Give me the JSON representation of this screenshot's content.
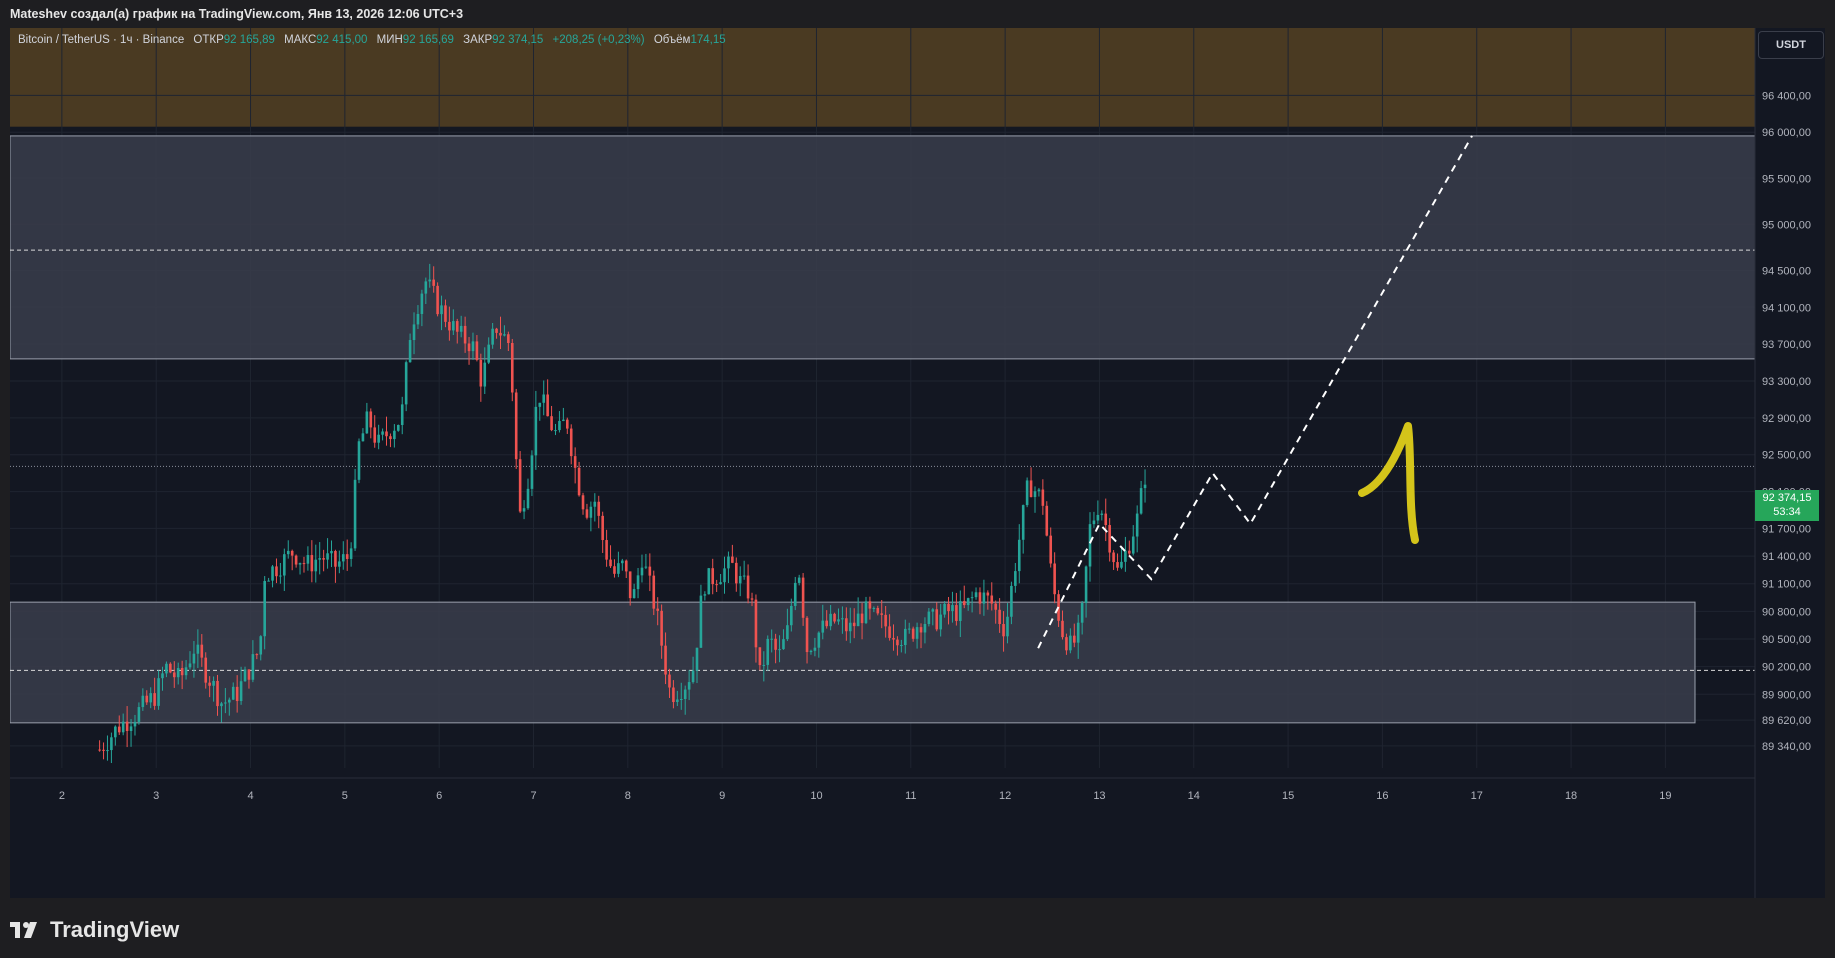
{
  "header": {
    "title": "Mateshev создал(а) график на TradingView.com, Янв 13, 2026 12:06 UTC+3"
  },
  "legend": {
    "symbol": "Bitcoin / TetherUS · 1ч · Binance",
    "open_label": "ОТКР",
    "open": "92 165,89",
    "high_label": "МАКС",
    "high": "92 415,00",
    "low_label": "МИН",
    "low": "92 165,69",
    "close_label": "ЗАКР",
    "close": "92 374,15",
    "change": "+208,25 (+0,23%)",
    "volume_label": "Объём",
    "volume": "174,15"
  },
  "currency_button": "USDT",
  "last_price": {
    "value": "92 374,15",
    "countdown": "53:34"
  },
  "footer": {
    "brand": "TradingView"
  },
  "colors": {
    "up": "#26a69a",
    "down": "#ef5350",
    "background": "#131722",
    "zone": "#3a3d4b",
    "top_band": "#4a3a22",
    "annotation": "#d4c41a"
  },
  "chart_data": {
    "type": "candlestick",
    "y_ticks": [
      "96 400,00",
      "96 000,00",
      "95 500,00",
      "95 000,00",
      "94 500,00",
      "94 100,00",
      "93 700,00",
      "93 300,00",
      "92 900,00",
      "92 500,00",
      "92 100,00",
      "91 700,00",
      "91 400,00",
      "91 100,00",
      "90 800,00",
      "90 500,00",
      "90 200,00",
      "89 900,00",
      "89 620,00",
      "89 340,00"
    ],
    "x_ticks": [
      "2",
      "3",
      "4",
      "5",
      "6",
      "7",
      "8",
      "9",
      "10",
      "11",
      "12",
      "13",
      "14",
      "15",
      "16",
      "17",
      "18",
      "19"
    ],
    "ylim": [
      89100,
      96480
    ],
    "x_range_days": [
      1.45,
      19.95
    ],
    "zones": [
      {
        "from": 93540,
        "to": 95960
      },
      {
        "from": 89590,
        "to": 90900
      }
    ],
    "dashed_levels": [
      94720,
      90160
    ],
    "last_price": 92374.15,
    "projection_path": [
      [
        12.35,
        90400
      ],
      [
        13.0,
        91750
      ],
      [
        13.55,
        91150
      ],
      [
        14.2,
        92300
      ],
      [
        14.6,
        91750
      ],
      [
        16.95,
        95960
      ]
    ],
    "price_path": [
      [
        2.4,
        89300
      ],
      [
        2.6,
        89550
      ],
      [
        2.8,
        89700
      ],
      [
        3.0,
        89900
      ],
      [
        3.1,
        90200
      ],
      [
        3.25,
        90050
      ],
      [
        3.4,
        90400
      ],
      [
        3.55,
        90100
      ],
      [
        3.7,
        89800
      ],
      [
        3.85,
        89900
      ],
      [
        4.0,
        90200
      ],
      [
        4.1,
        90400
      ],
      [
        4.15,
        91200
      ],
      [
        4.3,
        91300
      ],
      [
        4.45,
        91450
      ],
      [
        4.6,
        91300
      ],
      [
        4.75,
        91400
      ],
      [
        4.9,
        91300
      ],
      [
        5.05,
        91400
      ],
      [
        5.15,
        92600
      ],
      [
        5.25,
        92900
      ],
      [
        5.35,
        92600
      ],
      [
        5.5,
        92800
      ],
      [
        5.6,
        92900
      ],
      [
        5.7,
        93900
      ],
      [
        5.85,
        94400
      ],
      [
        6.0,
        94100
      ],
      [
        6.2,
        93800
      ],
      [
        6.35,
        93700
      ],
      [
        6.45,
        93300
      ],
      [
        6.6,
        93900
      ],
      [
        6.75,
        93700
      ],
      [
        6.85,
        91800
      ],
      [
        6.95,
        92300
      ],
      [
        7.05,
        93200
      ],
      [
        7.15,
        92900
      ],
      [
        7.25,
        92700
      ],
      [
        7.35,
        92900
      ],
      [
        7.45,
        92300
      ],
      [
        7.55,
        91900
      ],
      [
        7.65,
        92000
      ],
      [
        7.75,
        91500
      ],
      [
        7.85,
        91200
      ],
      [
        7.95,
        91300
      ],
      [
        8.05,
        90900
      ],
      [
        8.15,
        91400
      ],
      [
        8.3,
        90800
      ],
      [
        8.45,
        89900
      ],
      [
        8.6,
        90000
      ],
      [
        8.7,
        90200
      ],
      [
        8.8,
        91100
      ],
      [
        8.95,
        91200
      ],
      [
        9.1,
        91300
      ],
      [
        9.2,
        91100
      ],
      [
        9.3,
        91000
      ],
      [
        9.4,
        90100
      ],
      [
        9.5,
        90500
      ],
      [
        9.6,
        90300
      ],
      [
        9.7,
        90600
      ],
      [
        9.8,
        91400
      ],
      [
        9.9,
        90400
      ],
      [
        10.05,
        90600
      ],
      [
        10.2,
        90700
      ],
      [
        10.35,
        90600
      ],
      [
        10.5,
        90800
      ],
      [
        10.65,
        90700
      ],
      [
        10.8,
        90600
      ],
      [
        10.95,
        90500
      ],
      [
        11.1,
        90700
      ],
      [
        11.25,
        90700
      ],
      [
        11.4,
        90800
      ],
      [
        11.55,
        90800
      ],
      [
        11.7,
        91000
      ],
      [
        11.85,
        90900
      ],
      [
        12.0,
        90600
      ],
      [
        12.12,
        91400
      ],
      [
        12.25,
        92200
      ],
      [
        12.4,
        92000
      ],
      [
        12.5,
        91100
      ],
      [
        12.6,
        90600
      ],
      [
        12.7,
        90400
      ],
      [
        12.8,
        90600
      ],
      [
        12.9,
        91700
      ],
      [
        13.0,
        92000
      ],
      [
        13.1,
        91600
      ],
      [
        13.2,
        91200
      ],
      [
        13.3,
        91500
      ],
      [
        13.4,
        91800
      ],
      [
        13.5,
        92374
      ]
    ]
  }
}
